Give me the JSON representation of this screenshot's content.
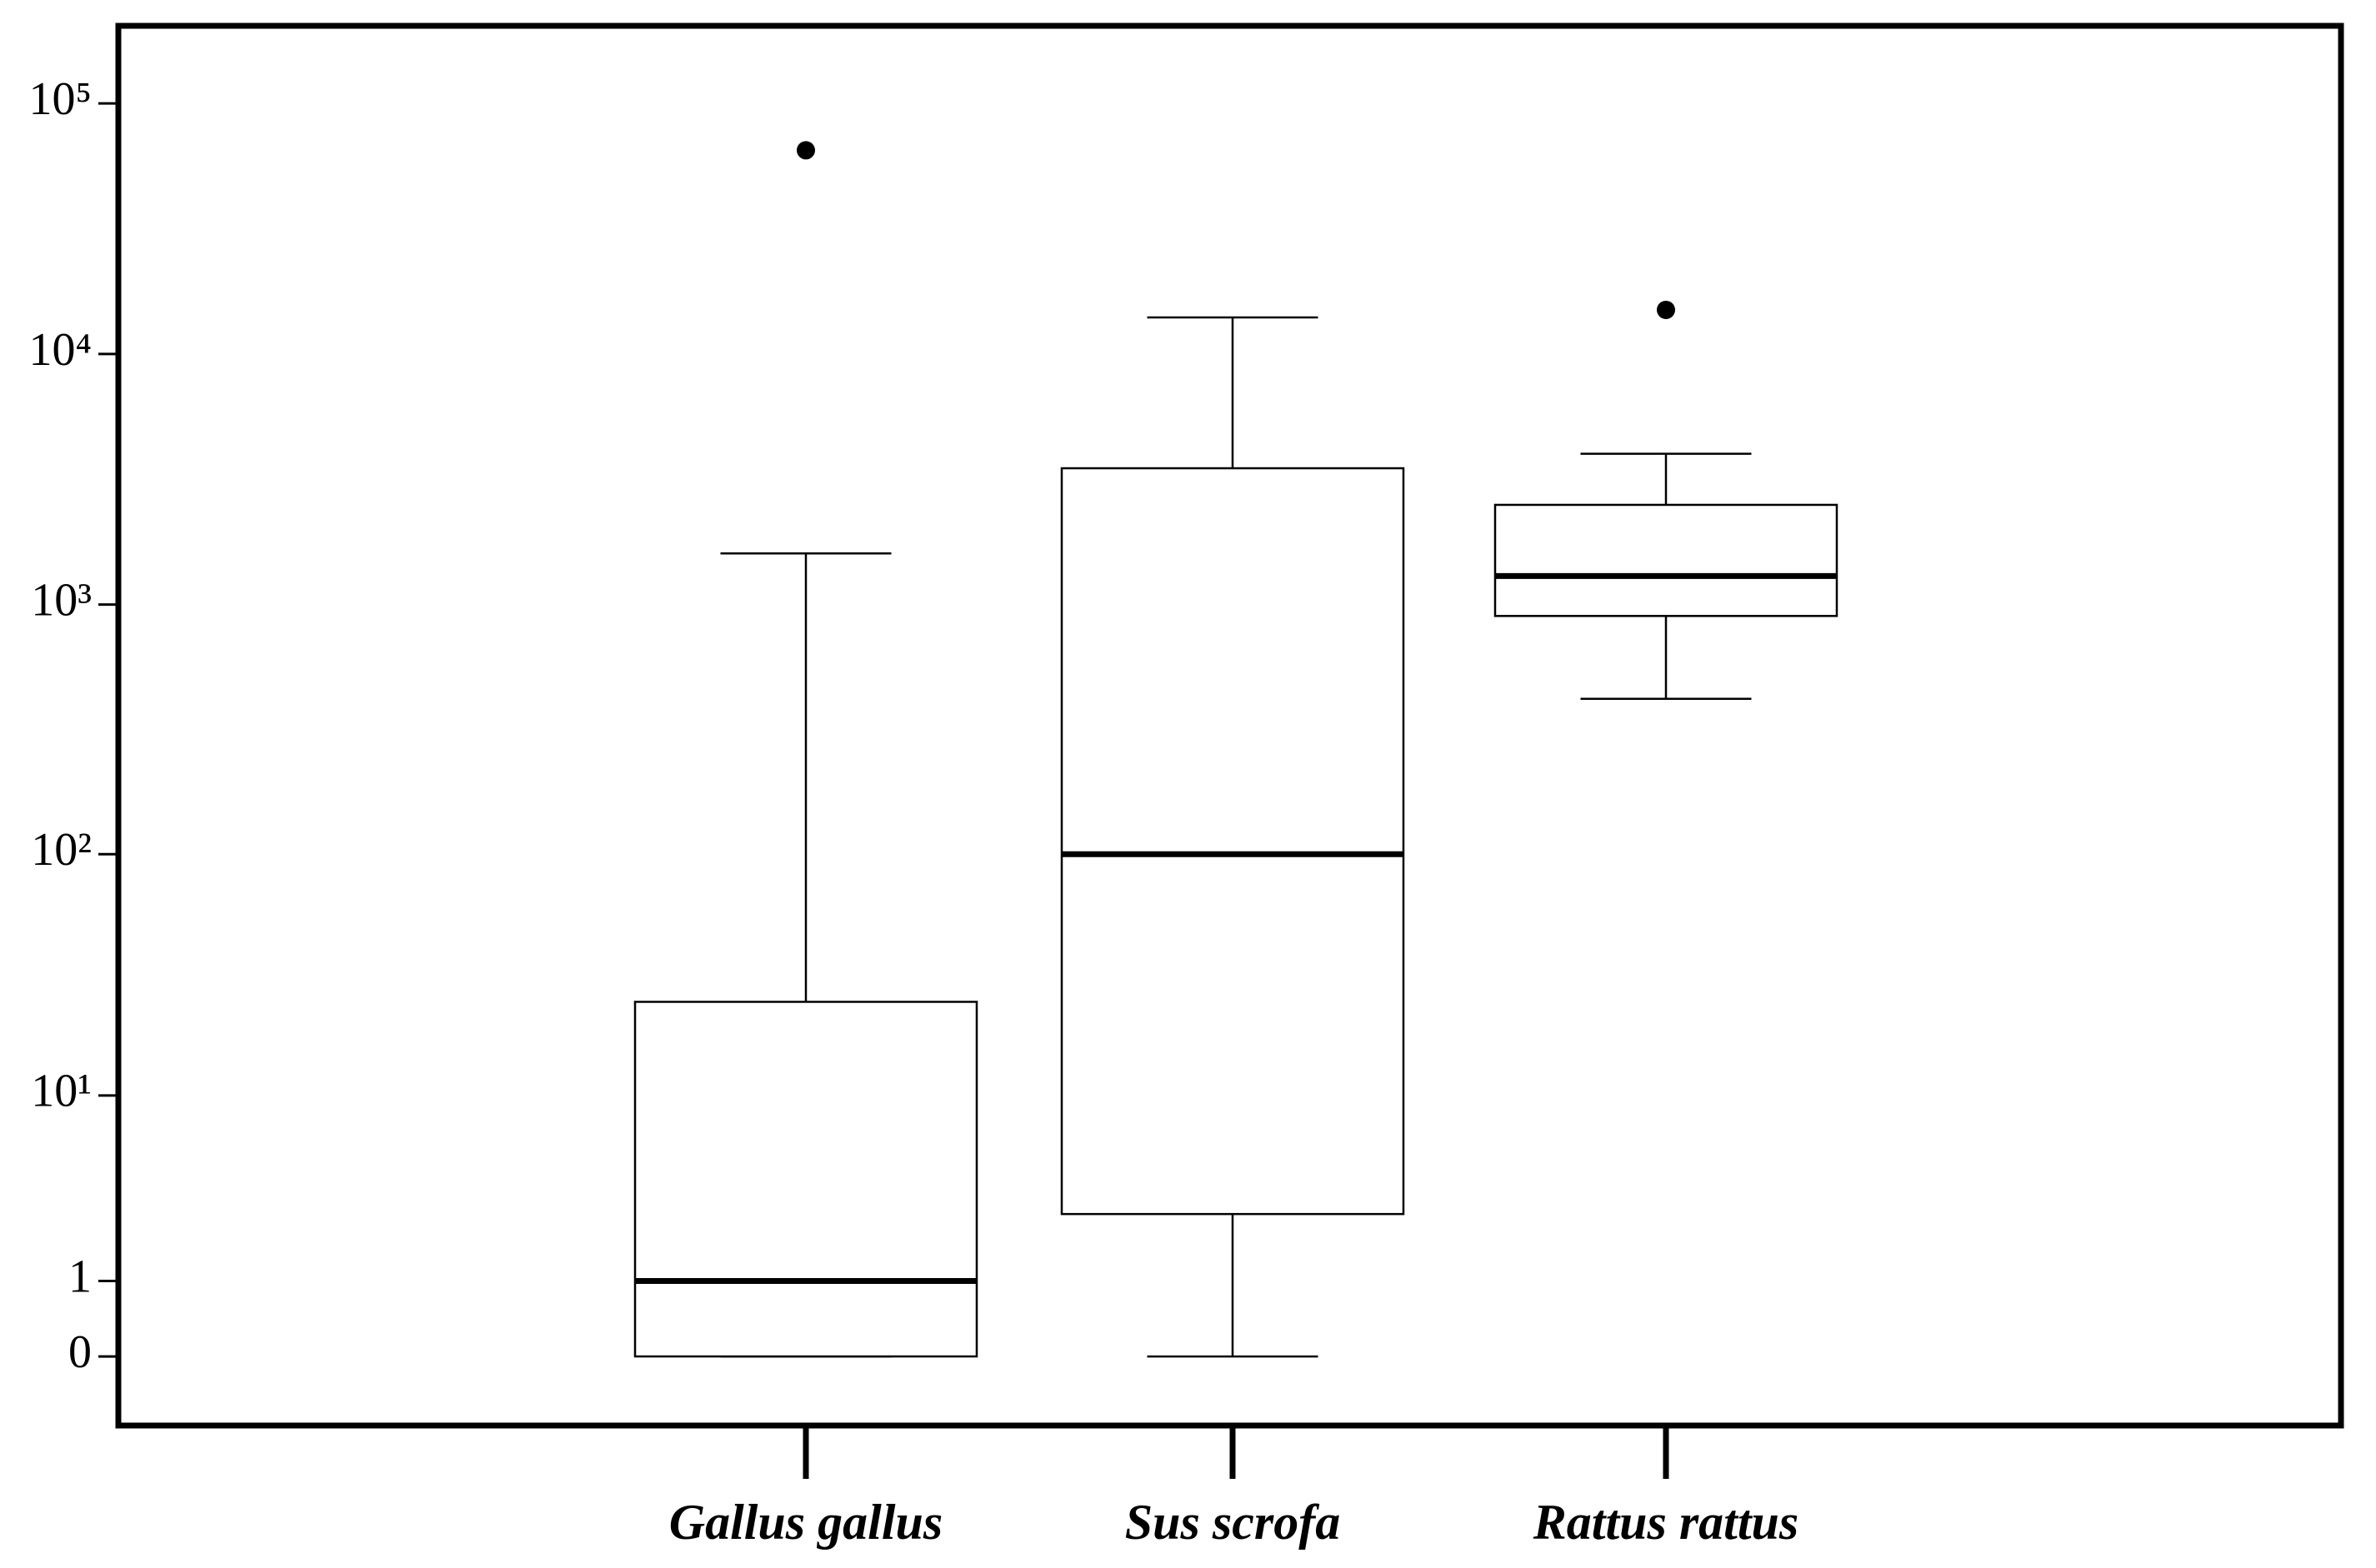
{
  "chart_data": {
    "type": "box",
    "categories": [
      "Gallus gallus",
      "Sus scrofa",
      "Rattus rattus"
    ],
    "boxes": [
      {
        "whislo": 0,
        "q1": 0,
        "med": 1,
        "q3": 25,
        "whishi": 1600,
        "fliers": [
          65000
        ]
      },
      {
        "whislo": 0,
        "q1": 2.7,
        "med": 100,
        "q3": 3500,
        "whishi": 14000,
        "fliers": []
      },
      {
        "whislo": 420,
        "q1": 900,
        "med": 1300,
        "q3": 2500,
        "whishi": 4000,
        "fliers": [
          15000
        ]
      }
    ],
    "color": "#000000",
    "yscale": "log1p",
    "ylim": [
      -0.47,
      204000
    ],
    "yticks": [
      0,
      1,
      {
        "value": 10,
        "label": "10¹"
      },
      {
        "value": 100,
        "label": "10²"
      },
      {
        "value": 1000,
        "label": "10³"
      },
      {
        "value": 10000,
        "label": "10⁴"
      },
      {
        "value": 100000,
        "label": "10⁵"
      }
    ]
  }
}
